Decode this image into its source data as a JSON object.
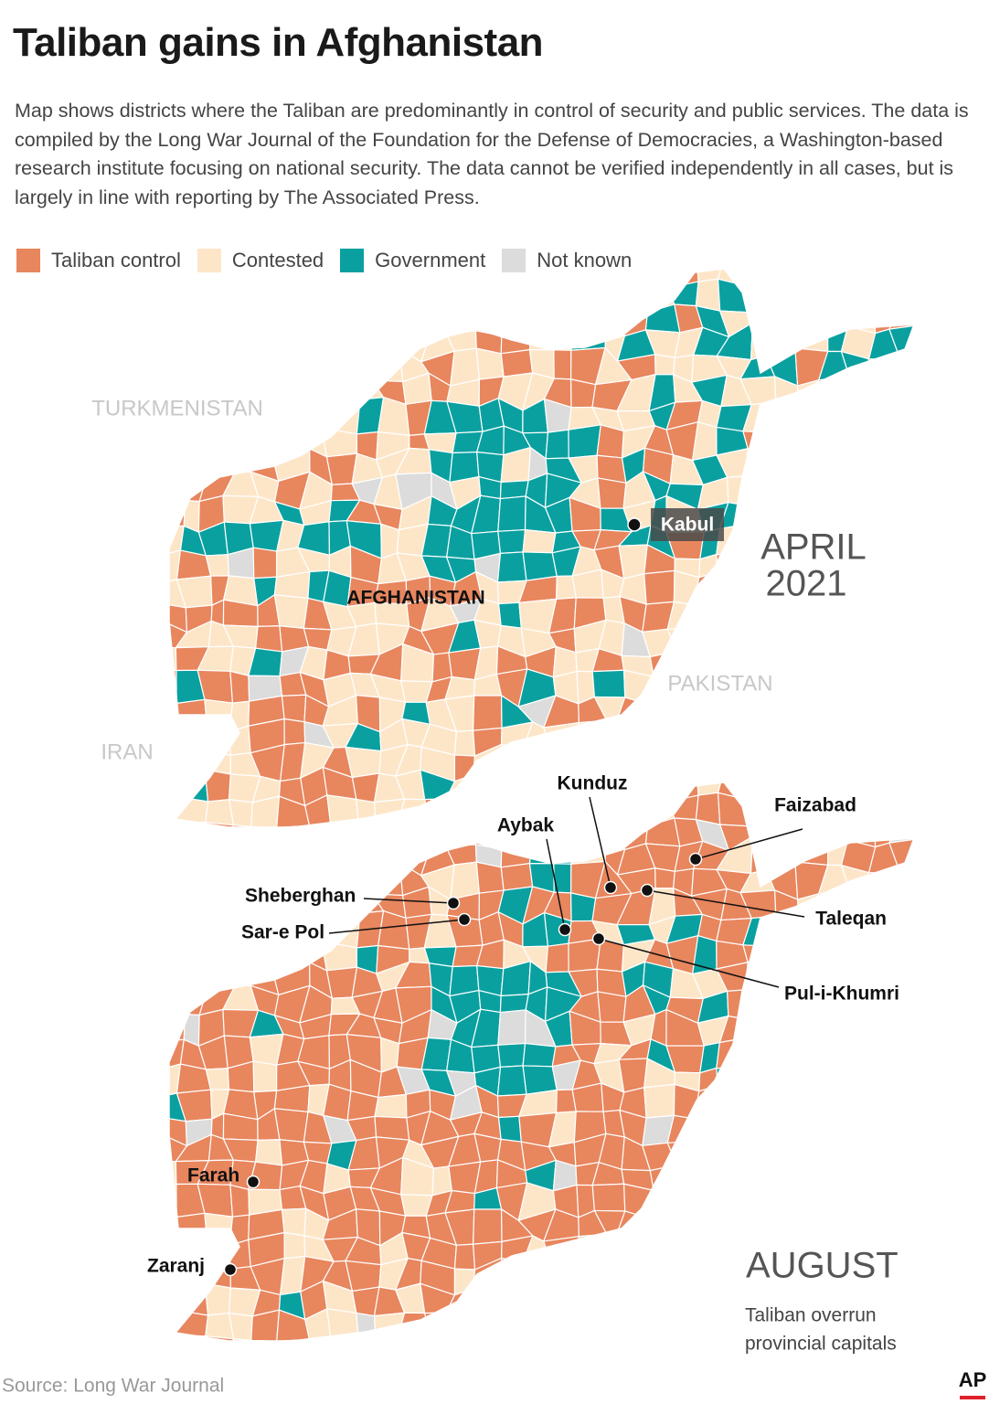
{
  "header": {
    "title": "Taliban gains in Afghanistan",
    "description": "Map shows districts where the Taliban are predominantly in control of security and public services. The data is compiled by the Long War Journal of the Foundation for the Defense of Democracies, a Washington-based research institute focusing on national security. The data cannot be verified independently in all cases, but is largely in line with reporting by The Associated Press."
  },
  "legend": [
    {
      "label": "Taliban control",
      "color": "#e8865e"
    },
    {
      "label": "Contested",
      "color": "#fde6c8"
    },
    {
      "label": "Government",
      "color": "#0aa0a0"
    },
    {
      "label": "Not known",
      "color": "#dcdcdc"
    }
  ],
  "maps": [
    {
      "period": [
        "APRIL",
        "2021"
      ],
      "neighbors": [
        "TURKMENISTAN",
        "PAKISTAN",
        "IRAN"
      ],
      "country": "AFGHANISTAN",
      "capital": "Kabul"
    },
    {
      "period": [
        "AUGUST"
      ],
      "subtitle": [
        "Taliban overrun",
        "provincial capitals"
      ],
      "cities": [
        "Kunduz",
        "Faizabad",
        "Aybak",
        "Sheberghan",
        "Sar-e Pol",
        "Taleqan",
        "Pul-i-Khumri",
        "Farah",
        "Zaranj"
      ]
    }
  ],
  "footer": {
    "source": "Source: Long War Journal",
    "credit": "AP"
  }
}
